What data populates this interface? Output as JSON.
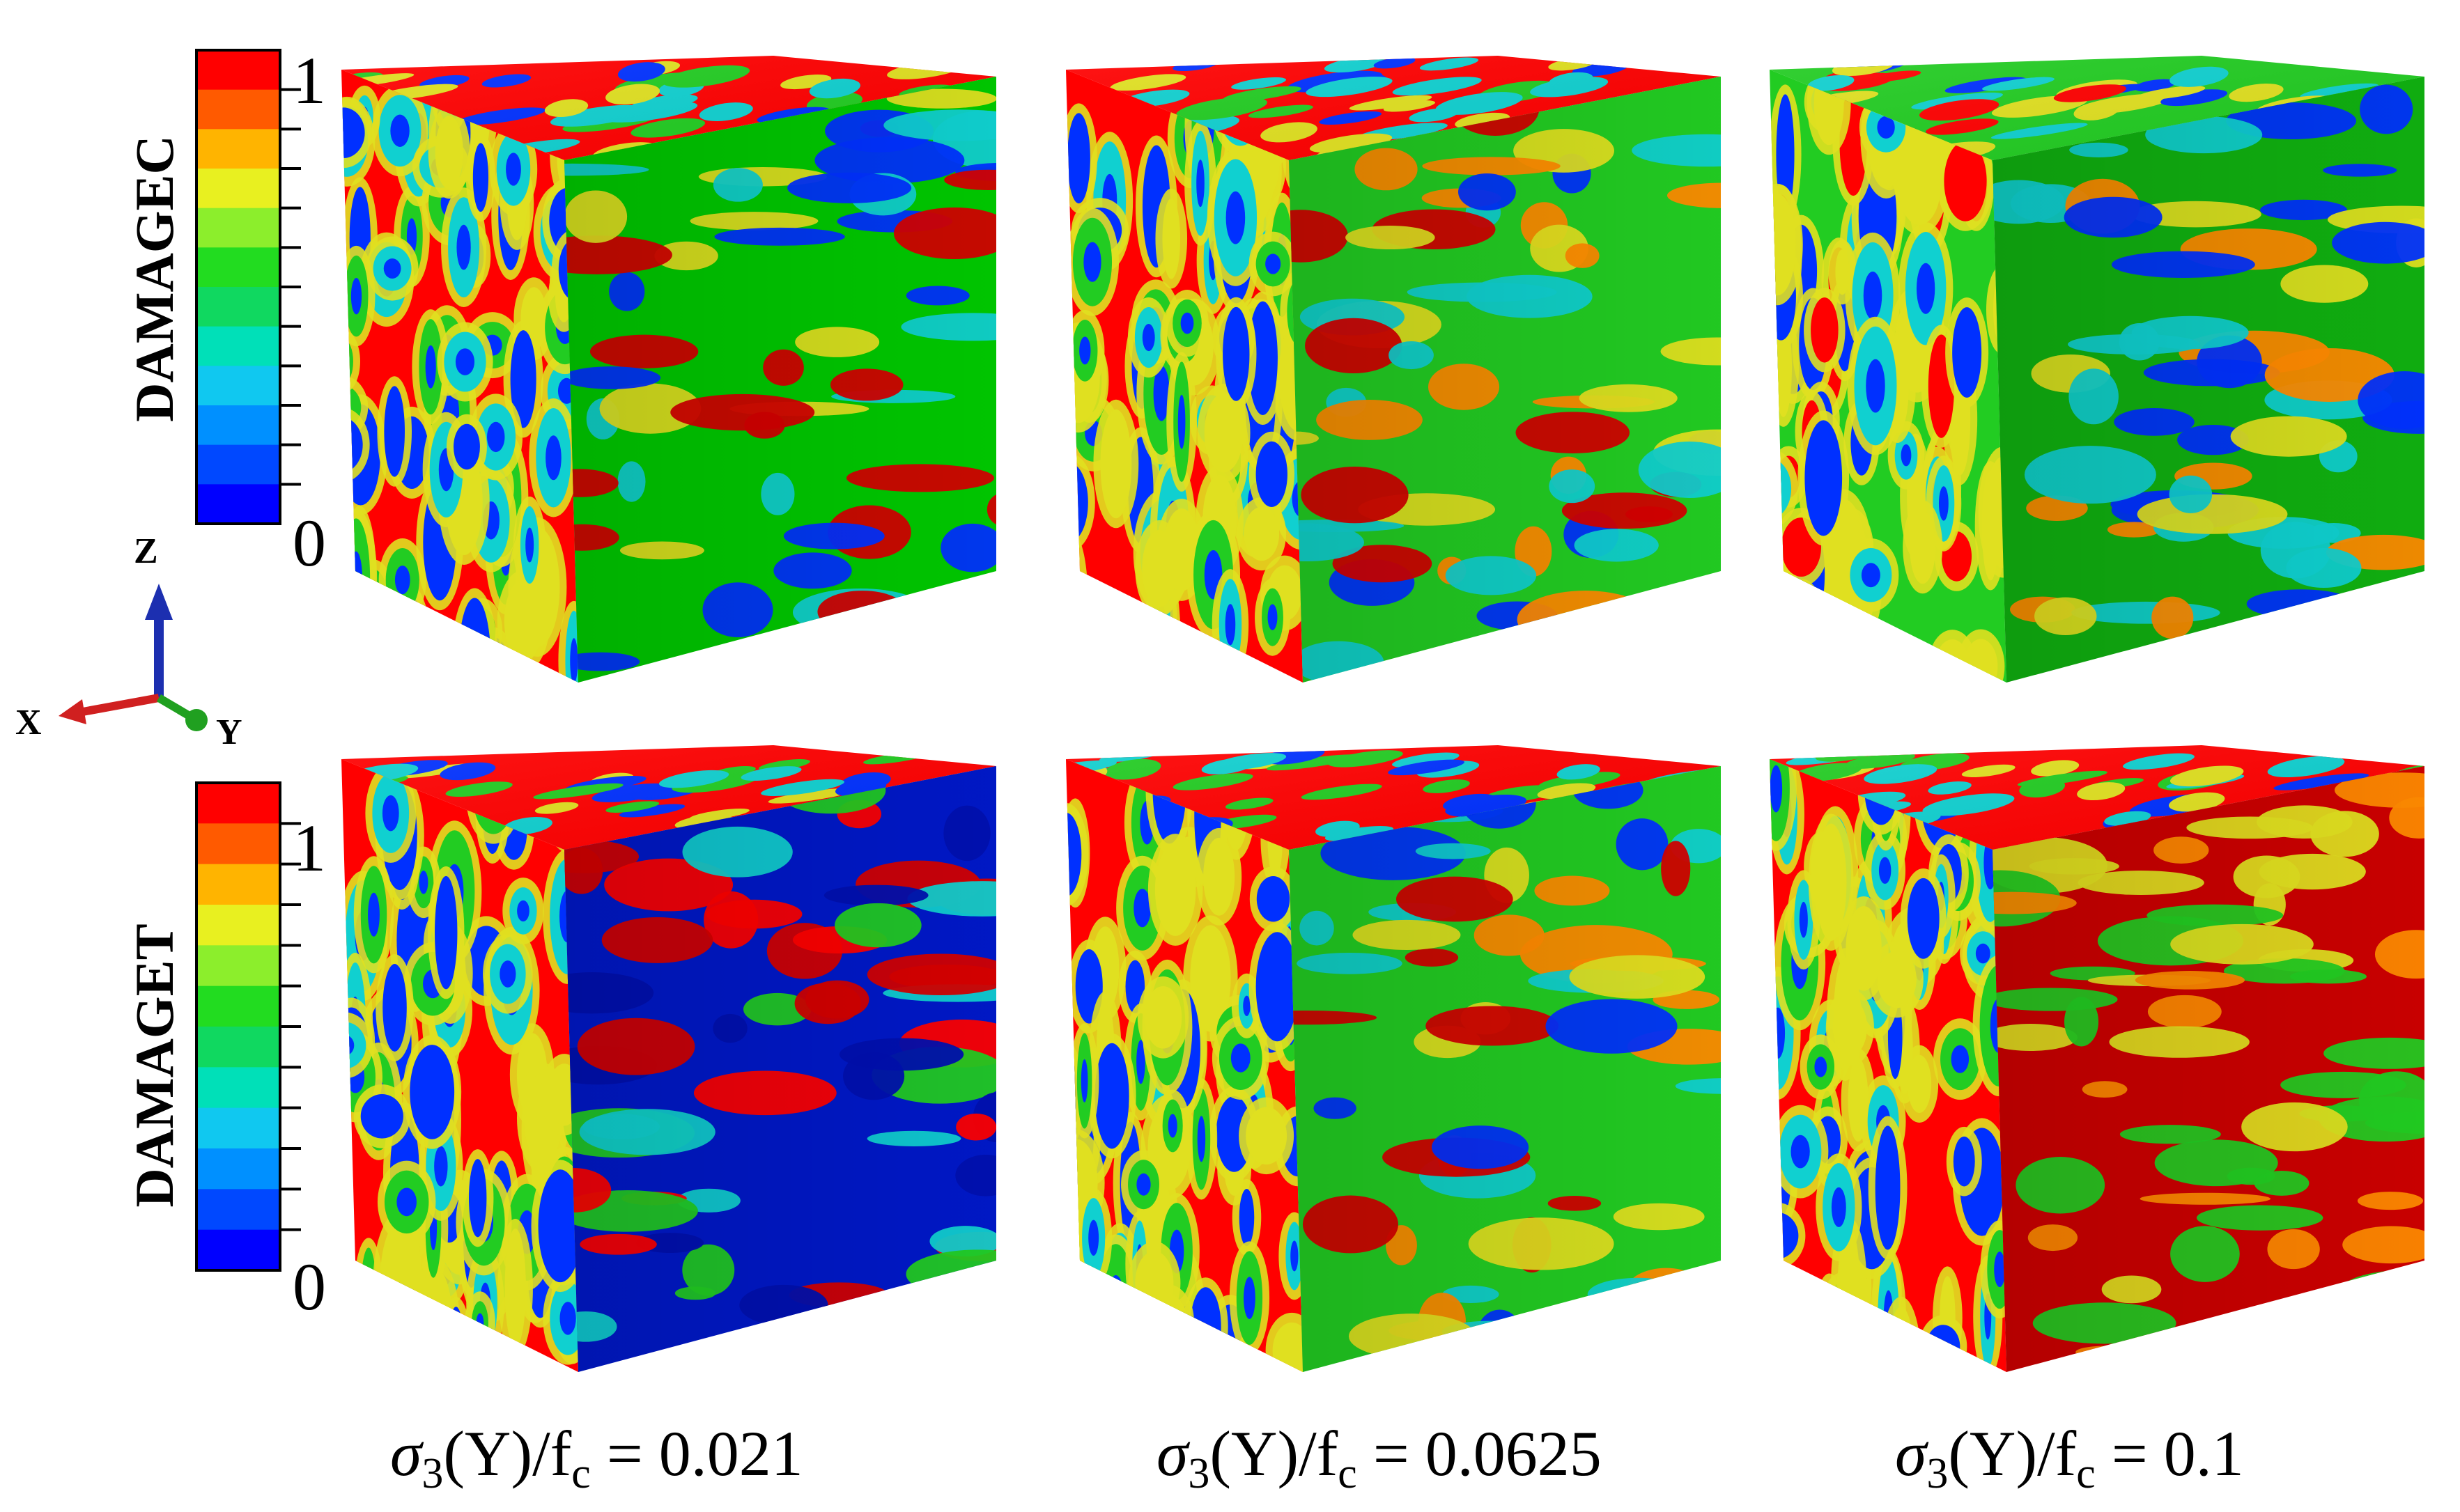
{
  "legends": [
    {
      "title": "DAMAGEC",
      "max_label": "1",
      "min_label": "0"
    },
    {
      "title": "DAMAGET",
      "max_label": "1",
      "min_label": "0"
    }
  ],
  "colorbar_colors": [
    "#ff0000",
    "#ff5a00",
    "#ffb400",
    "#e8f020",
    "#8cee2c",
    "#22dc20",
    "#10d860",
    "#00e0b8",
    "#10c8f0",
    "#0090ff",
    "#0048ff",
    "#0000ff"
  ],
  "axes": {
    "z_label": "Z",
    "x_label": "X",
    "y_label": "Y"
  },
  "columns": [
    {
      "label_prefix": "σ",
      "label_sub": "3",
      "label_mid": "(Y)/f",
      "label_sub2": "c",
      "label_value": " = 0.021"
    },
    {
      "label_prefix": "σ",
      "label_sub": "3",
      "label_mid": "(Y)/f",
      "label_sub2": "c",
      "label_value": " = 0.0625"
    },
    {
      "label_prefix": "σ",
      "label_sub": "3",
      "label_mid": "(Y)/f",
      "label_sub2": "c",
      "label_value": " = 0.1"
    }
  ],
  "cubes": [
    {
      "row": 0,
      "col": 0,
      "top_base": "#ff0000",
      "left_base": "#ff0000",
      "right_base": "#00c800"
    },
    {
      "row": 0,
      "col": 1,
      "top_base": "#ff0000",
      "left_base": "#ff0000",
      "right_base": "#22cc22"
    },
    {
      "row": 0,
      "col": 2,
      "top_base": "#22cc22",
      "left_base": "#22cc22",
      "right_base": "#10b010"
    },
    {
      "row": 1,
      "col": 0,
      "top_base": "#ff0000",
      "left_base": "#ff0000",
      "right_base": "#0018c8"
    },
    {
      "row": 1,
      "col": 1,
      "top_base": "#ff0000",
      "left_base": "#ff0000",
      "right_base": "#22cc22"
    },
    {
      "row": 1,
      "col": 2,
      "top_base": "#ff0000",
      "left_base": "#ff0000",
      "right_base": "#cc0000"
    }
  ],
  "blob_colors": {
    "red": "#ff0000",
    "darkred": "#d40000",
    "green": "#22cc22",
    "yellow": "#e0e020",
    "orange": "#ff8a00",
    "cyan": "#10d0d0",
    "blue": "#0030ff",
    "navy": "#0010b0"
  }
}
